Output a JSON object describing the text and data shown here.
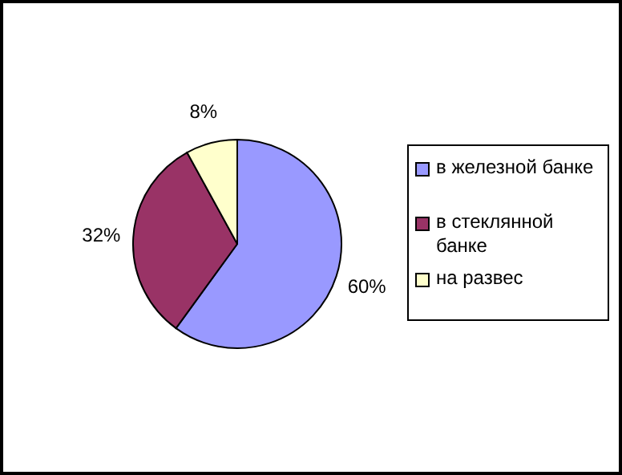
{
  "chart_data": {
    "type": "pie",
    "categories": [
      "в железной банке",
      "в стеклянной банке",
      "на развес"
    ],
    "values": [
      60,
      32,
      8
    ],
    "colors": [
      "#9999ff",
      "#993366",
      "#ffffcc"
    ],
    "value_labels": [
      "60%",
      "32%",
      "8%"
    ],
    "legend": "right"
  }
}
